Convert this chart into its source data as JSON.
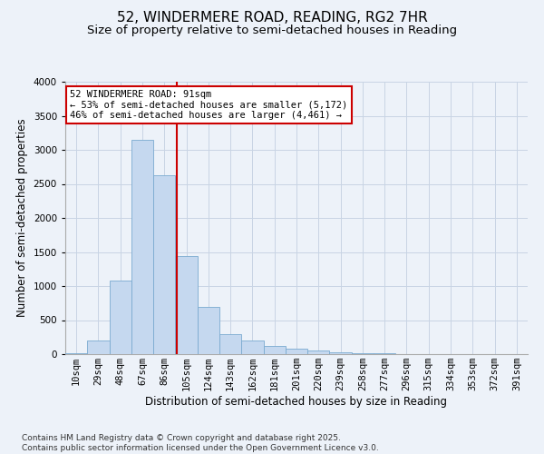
{
  "title": "52, WINDERMERE ROAD, READING, RG2 7HR",
  "subtitle": "Size of property relative to semi-detached houses in Reading",
  "xlabel": "Distribution of semi-detached houses by size in Reading",
  "ylabel": "Number of semi-detached properties",
  "categories": [
    "10sqm",
    "29sqm",
    "48sqm",
    "67sqm",
    "86sqm",
    "105sqm",
    "124sqm",
    "143sqm",
    "162sqm",
    "181sqm",
    "201sqm",
    "220sqm",
    "239sqm",
    "258sqm",
    "277sqm",
    "296sqm",
    "315sqm",
    "334sqm",
    "353sqm",
    "372sqm",
    "391sqm"
  ],
  "values": [
    20,
    195,
    1080,
    3150,
    2630,
    1440,
    690,
    295,
    195,
    125,
    85,
    50,
    30,
    18,
    8,
    5,
    4,
    2,
    2,
    1,
    0
  ],
  "bar_color": "#c5d8ef",
  "bar_edge_color": "#7aaad0",
  "grid_color": "#c8d4e4",
  "background_color": "#edf2f9",
  "vline_x_index": 4.55,
  "vline_color": "#cc0000",
  "annotation_text": "52 WINDERMERE ROAD: 91sqm\n← 53% of semi-detached houses are smaller (5,172)\n46% of semi-detached houses are larger (4,461) →",
  "annotation_box_color": "#ffffff",
  "annotation_box_edge": "#cc0000",
  "ylim": [
    0,
    4000
  ],
  "yticks": [
    0,
    500,
    1000,
    1500,
    2000,
    2500,
    3000,
    3500,
    4000
  ],
  "footnote": "Contains HM Land Registry data © Crown copyright and database right 2025.\nContains public sector information licensed under the Open Government Licence v3.0.",
  "title_fontsize": 11,
  "subtitle_fontsize": 9.5,
  "tick_fontsize": 7.5,
  "label_fontsize": 8.5,
  "annotation_fontsize": 7.5,
  "footnote_fontsize": 6.5
}
